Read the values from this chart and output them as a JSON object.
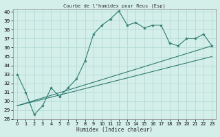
{
  "title": "Courbe de l'humidex pour Reus (Esp)",
  "xlabel": "Humidex (Indice chaleur)",
  "bg_color": "#d4eeea",
  "grid_color": "#b8ddd8",
  "line_color": "#2d7a6e",
  "xlim": [
    -0.5,
    23.5
  ],
  "ylim": [
    28,
    40.3
  ],
  "xticks": [
    0,
    1,
    2,
    3,
    4,
    5,
    6,
    7,
    8,
    9,
    10,
    11,
    12,
    13,
    14,
    15,
    16,
    17,
    18,
    19,
    20,
    21,
    22,
    23
  ],
  "yticks": [
    28,
    29,
    30,
    31,
    32,
    33,
    34,
    35,
    36,
    37,
    38,
    39,
    40
  ],
  "series1_x": [
    0,
    1,
    2,
    3,
    4,
    5,
    6,
    7,
    8,
    9,
    10,
    11,
    12,
    13,
    14,
    15,
    16,
    17,
    18,
    19,
    20,
    21,
    22,
    23
  ],
  "series1_y": [
    33,
    31,
    28.5,
    29.5,
    31.5,
    30.5,
    31.5,
    32.5,
    34.5,
    37.5,
    38.5,
    39.2,
    40.1,
    38.5,
    38.8,
    38.2,
    38.5,
    38.5,
    36.5,
    36.2,
    37.0,
    37.0,
    37.5,
    36.2
  ],
  "series2_x": [
    0,
    23
  ],
  "series2_y": [
    29.5,
    36.2
  ],
  "series3_x": [
    0,
    23
  ],
  "series3_y": [
    29.5,
    35.0
  ]
}
